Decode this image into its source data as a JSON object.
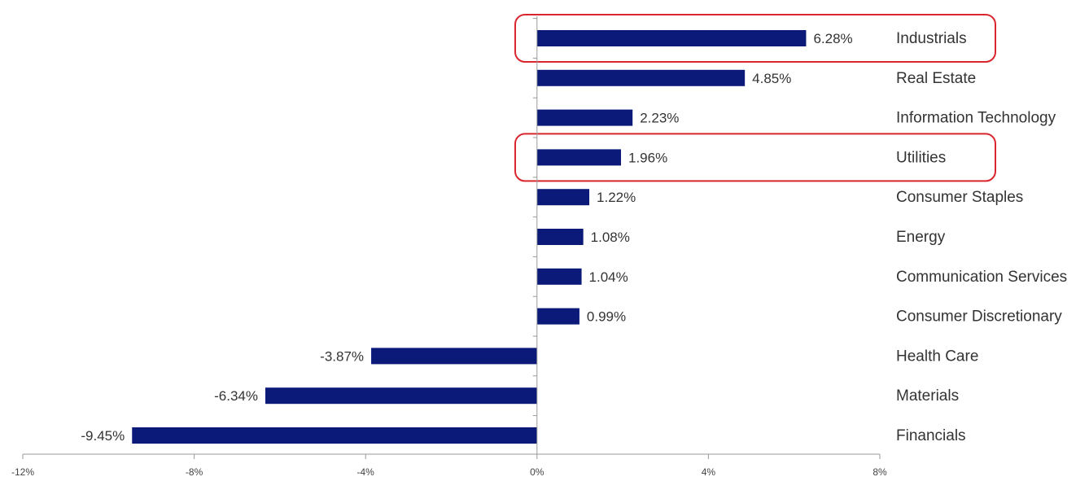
{
  "chart_data": {
    "type": "bar",
    "orientation": "horizontal",
    "categories": [
      "Industrials",
      "Real Estate",
      "Information Technology",
      "Utilities",
      "Consumer Staples",
      "Energy",
      "Communication Services",
      "Consumer Discretionary",
      "Health Care",
      "Materials",
      "Financials"
    ],
    "values": [
      6.28,
      4.85,
      2.23,
      1.96,
      1.22,
      1.08,
      1.04,
      0.99,
      -3.87,
      -6.34,
      -9.45
    ],
    "value_labels": [
      "6.28%",
      "4.85%",
      "2.23%",
      "1.96%",
      "1.22%",
      "1.08%",
      "1.04%",
      "0.99%",
      "-3.87%",
      "-6.34%",
      "-9.45%"
    ],
    "xlim": [
      -12,
      8
    ],
    "xticks": [
      -12,
      -8,
      -4,
      0,
      4,
      8
    ],
    "xtick_labels": [
      "-12%",
      "-8%",
      "-4%",
      "0%",
      "4%",
      "8%"
    ],
    "highlighted": [
      "Industrials",
      "Utilities"
    ],
    "grid": false,
    "colors": {
      "bar": "#0b1a78",
      "highlight_box": "#d9262e",
      "axis": "#999999",
      "text": "#333333"
    }
  }
}
